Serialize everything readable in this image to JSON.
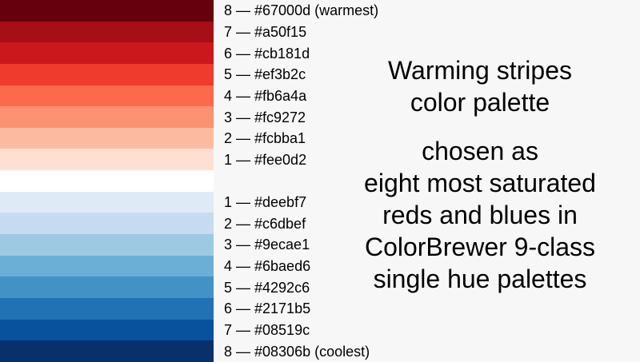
{
  "stripes": [
    {
      "color": "#67000d"
    },
    {
      "color": "#a50f15"
    },
    {
      "color": "#cb181d"
    },
    {
      "color": "#ef3b2c"
    },
    {
      "color": "#fb6a4a"
    },
    {
      "color": "#fc9272"
    },
    {
      "color": "#fcbba1"
    },
    {
      "color": "#fee0d2"
    },
    {
      "color": "#ffffff"
    },
    {
      "color": "#deebf7"
    },
    {
      "color": "#c6dbef"
    },
    {
      "color": "#9ecae1"
    },
    {
      "color": "#6baed6"
    },
    {
      "color": "#4292c6"
    },
    {
      "color": "#2171b5"
    },
    {
      "color": "#08519c"
    },
    {
      "color": "#08306b"
    }
  ],
  "labels": [
    "8 — #67000d (warmest)",
    "7 — #a50f15",
    "6 — #cb181d",
    "5 — #ef3b2c",
    "4 — #fb6a4a",
    "3 — #fc9272",
    "2 — #fcbba1",
    "1 — #fee0d2",
    "",
    "1 — #deebf7",
    "2 — #c6dbef",
    "3 — #9ecae1",
    "4 — #6baed6",
    "5 — #4292c6",
    "6 — #2171b5",
    "7 — #08519c",
    "8 — #08306b (coolest)"
  ],
  "title": {
    "line1": "Warming stripes",
    "line2": "color palette"
  },
  "description": {
    "line1": "chosen as",
    "line2": "eight most saturated",
    "line3": "reds and blues in",
    "line4": "ColorBrewer 9-class",
    "line5": "single hue palettes"
  }
}
